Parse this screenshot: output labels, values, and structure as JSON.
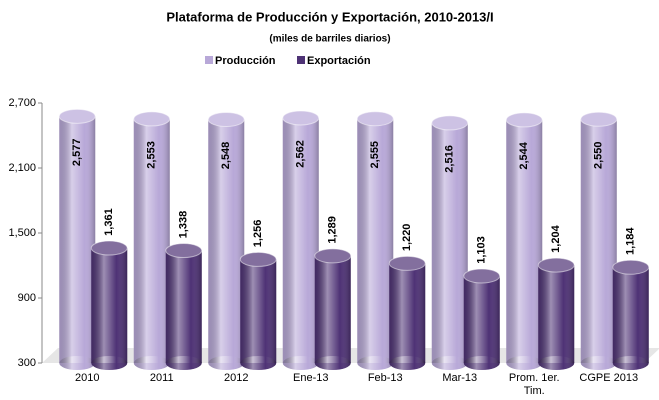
{
  "chart_data": {
    "type": "bar",
    "title": "Plataforma de Producción y Exportación, 2010-2013/I",
    "subtitle": "(miles de barriles diarios)",
    "categories": [
      "2010",
      "2011",
      "2012",
      "Ene-13",
      "Feb-13",
      "Mar-13",
      "Prom. 1er. Tim.",
      "CGPE 2013"
    ],
    "series": [
      {
        "name": "Producción",
        "color": "#b8a8d8",
        "values": [
          2577,
          2553,
          2548,
          2562,
          2555,
          2516,
          2544,
          2550
        ],
        "value_labels": [
          "2,577",
          "2,553",
          "2,548",
          "2,562",
          "2,555",
          "2,516",
          "2,544",
          "2,550"
        ]
      },
      {
        "name": "Exportación",
        "color": "#4e3275",
        "values": [
          1361,
          1338,
          1256,
          1289,
          1220,
          1103,
          1204,
          1184
        ],
        "value_labels": [
          "1,361",
          "1,338",
          "1,256",
          "1,289",
          "1,220",
          "1,103",
          "1,204",
          "1,184"
        ]
      }
    ],
    "ylim": [
      300,
      2700
    ],
    "yticks": [
      300,
      900,
      {
        "value": 1500,
        "label": "1,500"
      },
      {
        "value": 2100,
        "label": "2,100"
      },
      {
        "value": 2700,
        "label": "2,700"
      }
    ],
    "legend": "top"
  }
}
